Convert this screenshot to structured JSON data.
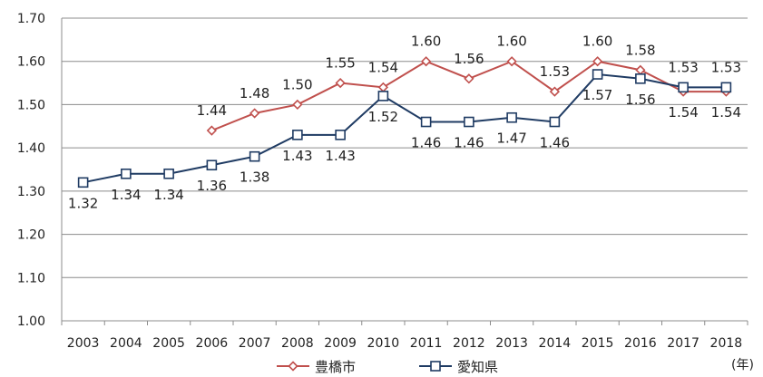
{
  "chart_data": {
    "type": "line",
    "title": "",
    "xlabel": "",
    "ylabel": "",
    "x_unit_label": "(年)",
    "categories": [
      "2003",
      "2004",
      "2005",
      "2006",
      "2007",
      "2008",
      "2009",
      "2010",
      "2011",
      "2012",
      "2013",
      "2014",
      "2015",
      "2016",
      "2017",
      "2018"
    ],
    "ylim": [
      1.0,
      1.7
    ],
    "yticks": [
      "1.00",
      "1.10",
      "1.20",
      "1.30",
      "1.40",
      "1.50",
      "1.60",
      "1.70"
    ],
    "grid": true,
    "legend_position": "bottom",
    "series": [
      {
        "name": "豊橋市",
        "color": "#c0504d",
        "marker": "diamond",
        "values": [
          null,
          null,
          null,
          1.44,
          1.48,
          1.5,
          1.55,
          1.54,
          1.6,
          1.56,
          1.6,
          1.53,
          1.6,
          1.58,
          1.53,
          1.53
        ],
        "labels": [
          "",
          "",
          "",
          "1.44",
          "1.48",
          "1.50",
          "1.55",
          "1.54",
          "1.60",
          "1.56",
          "1.60",
          "1.53",
          "1.60",
          "1.58",
          "1.53",
          "1.53"
        ]
      },
      {
        "name": "愛知県",
        "color": "#1f3b63",
        "marker": "square",
        "values": [
          1.32,
          1.34,
          1.34,
          1.36,
          1.38,
          1.43,
          1.43,
          1.52,
          1.46,
          1.46,
          1.47,
          1.46,
          1.57,
          1.56,
          1.54,
          1.54
        ],
        "labels": [
          "1.32",
          "1.34",
          "1.34",
          "1.36",
          "1.38",
          "1.43",
          "1.43",
          "1.52",
          "1.46",
          "1.46",
          "1.47",
          "1.46",
          "1.57",
          "1.56",
          "1.54",
          "1.54"
        ]
      }
    ]
  }
}
